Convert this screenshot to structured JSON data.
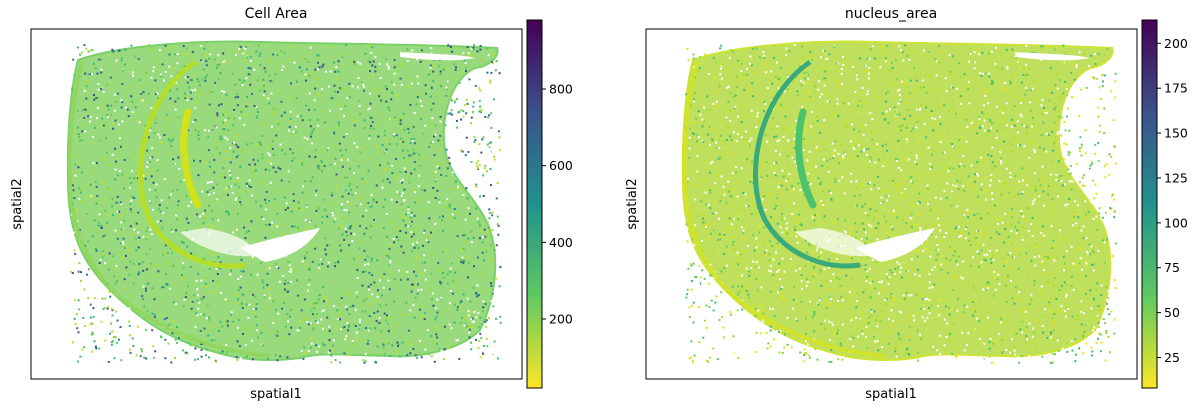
{
  "chart_data": [
    {
      "type": "scatter",
      "title": "Cell Area",
      "xlabel": "spatial1",
      "ylabel": "spatial2",
      "colormap": "viridis_r",
      "colorbar": {
        "range": [
          20,
          980
        ],
        "ticks": [
          200,
          400,
          600,
          800
        ],
        "tick_labels": [
          "200",
          "400",
          "600",
          "800"
        ]
      },
      "grid": false,
      "x_ticks": [],
      "y_ticks": []
    },
    {
      "type": "scatter",
      "title": "nucleus_area",
      "xlabel": "spatial1",
      "ylabel": "spatial2",
      "colormap": "viridis_r",
      "colorbar": {
        "range": [
          8,
          213
        ],
        "ticks": [
          25,
          50,
          75,
          100,
          125,
          150,
          175,
          200
        ],
        "tick_labels": [
          "25",
          "50",
          "75",
          "100",
          "125",
          "150",
          "175",
          "200"
        ]
      },
      "grid": false,
      "x_ticks": [],
      "y_ticks": []
    }
  ]
}
